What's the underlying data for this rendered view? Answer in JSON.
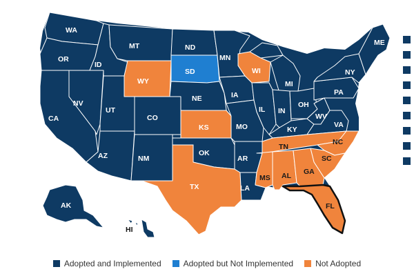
{
  "colors": {
    "adopted_implemented": "#0e3a63",
    "adopted_not_implemented": "#1f7fd1",
    "not_adopted": "#f0843c",
    "border": "#ffffff",
    "highlight_outline": "#111111"
  },
  "legend": {
    "items": [
      {
        "label": "Adopted and Implemented",
        "color": "#0e3a63"
      },
      {
        "label": "Adopted but Not Implemented",
        "color": "#1f7fd1"
      },
      {
        "label": "Not Adopted",
        "color": "#f0843c"
      }
    ]
  },
  "states": [
    {
      "code": "WA",
      "status": "adopted_implemented"
    },
    {
      "code": "OR",
      "status": "adopted_implemented"
    },
    {
      "code": "CA",
      "status": "adopted_implemented"
    },
    {
      "code": "ID",
      "status": "adopted_implemented"
    },
    {
      "code": "NV",
      "status": "adopted_implemented"
    },
    {
      "code": "MT",
      "status": "adopted_implemented"
    },
    {
      "code": "WY",
      "status": "not_adopted"
    },
    {
      "code": "UT",
      "status": "adopted_implemented"
    },
    {
      "code": "AZ",
      "status": "adopted_implemented"
    },
    {
      "code": "CO",
      "status": "adopted_implemented"
    },
    {
      "code": "NM",
      "status": "adopted_implemented"
    },
    {
      "code": "ND",
      "status": "adopted_implemented"
    },
    {
      "code": "SD",
      "status": "adopted_not_implemented"
    },
    {
      "code": "NE",
      "status": "adopted_implemented"
    },
    {
      "code": "KS",
      "status": "not_adopted"
    },
    {
      "code": "OK",
      "status": "adopted_implemented"
    },
    {
      "code": "TX",
      "status": "not_adopted"
    },
    {
      "code": "MN",
      "status": "adopted_implemented"
    },
    {
      "code": "IA",
      "status": "adopted_implemented"
    },
    {
      "code": "MO",
      "status": "adopted_implemented"
    },
    {
      "code": "AR",
      "status": "adopted_implemented"
    },
    {
      "code": "LA",
      "status": "adopted_implemented"
    },
    {
      "code": "WI",
      "status": "not_adopted"
    },
    {
      "code": "IL",
      "status": "adopted_implemented"
    },
    {
      "code": "MI",
      "status": "adopted_implemented"
    },
    {
      "code": "IN",
      "status": "adopted_implemented"
    },
    {
      "code": "OH",
      "status": "adopted_implemented"
    },
    {
      "code": "KY",
      "status": "adopted_implemented"
    },
    {
      "code": "TN",
      "status": "not_adopted"
    },
    {
      "code": "MS",
      "status": "not_adopted"
    },
    {
      "code": "AL",
      "status": "not_adopted"
    },
    {
      "code": "GA",
      "status": "not_adopted"
    },
    {
      "code": "FL",
      "status": "not_adopted"
    },
    {
      "code": "SC",
      "status": "not_adopted"
    },
    {
      "code": "NC",
      "status": "not_adopted"
    },
    {
      "code": "VA",
      "status": "adopted_implemented"
    },
    {
      "code": "WV",
      "status": "adopted_implemented"
    },
    {
      "code": "PA",
      "status": "adopted_implemented"
    },
    {
      "code": "NY",
      "status": "adopted_implemented"
    },
    {
      "code": "ME",
      "status": "adopted_implemented"
    },
    {
      "code": "AK",
      "status": "adopted_implemented"
    },
    {
      "code": "HI",
      "status": "adopted_implemented"
    }
  ],
  "highlighted_state": "FL",
  "side_squares": [
    {
      "color": "#0e3a63"
    },
    {
      "color": "#0e3a63"
    },
    {
      "color": "#0e3a63"
    },
    {
      "color": "#0e3a63"
    },
    {
      "color": "#0e3a63"
    },
    {
      "color": "#0e3a63"
    },
    {
      "color": "#0e3a63"
    },
    {
      "color": "#0e3a63"
    },
    {
      "color": "#0e3a63"
    }
  ]
}
